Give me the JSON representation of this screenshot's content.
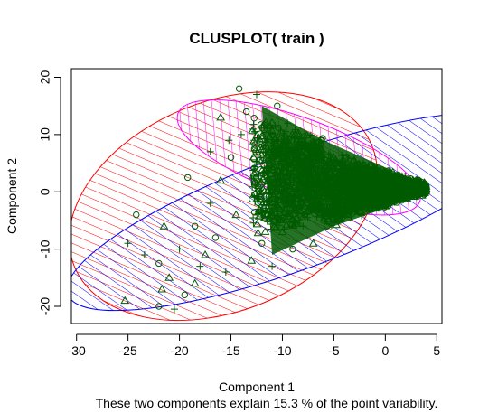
{
  "chart_data": {
    "type": "scatter",
    "title": "CLUSPLOT( train )",
    "xlabel": "Component 1",
    "ylabel": "Component 2",
    "subtitle": "These two components explain 15.3 % of the point variability.",
    "xlim": [
      -30.5,
      5.5
    ],
    "ylim": [
      -23,
      21.5
    ],
    "xticks": [
      -30,
      -25,
      -20,
      -15,
      -10,
      -5,
      0,
      5
    ],
    "yticks": [
      -20,
      -10,
      0,
      10,
      20
    ],
    "grid": false,
    "ellipses": [
      {
        "color": "#ff0000",
        "center": [
          -15.75,
          -2.5
        ],
        "semi_axes": [
          15.6,
          18.3
        ],
        "angle_deg": 22,
        "hatch": "diagonal"
      },
      {
        "color": "#0000ff",
        "center": [
          -8.75,
          -3.5
        ],
        "semi_axes": [
          23.5,
          10.0
        ],
        "angle_deg": 20,
        "hatch": "diagonal"
      },
      {
        "color": "#ff00ff",
        "center": [
          -8.4,
          6.0
        ],
        "semi_axes": [
          12.5,
          6.9
        ],
        "angle_deg": -20,
        "hatch": "diagonal"
      }
    ],
    "point_color": "#005a00",
    "point_symbols": [
      "plus",
      "circle",
      "triangle"
    ],
    "points": [
      [
        -25.0,
        -9.0
      ],
      [
        -24.2,
        -4.0
      ],
      [
        -25.3,
        -19.0
      ],
      [
        -23.4,
        -11.0
      ],
      [
        -22.0,
        -20.0
      ],
      [
        -21.7,
        -17.0
      ],
      [
        -20.5,
        -20.5
      ],
      [
        -22.0,
        -12.5
      ],
      [
        -21.0,
        -15.0
      ],
      [
        -20.0,
        -10.0
      ],
      [
        -19.5,
        -18.0
      ],
      [
        -18.5,
        -16.0
      ],
      [
        -18.0,
        -13.0
      ],
      [
        -18.5,
        -6.0
      ],
      [
        -17.5,
        -11.0
      ],
      [
        -17.0,
        -2.0
      ],
      [
        -16.5,
        -8.0
      ],
      [
        -16.0,
        2.0
      ],
      [
        -15.5,
        -14.0
      ],
      [
        -15.0,
        6.0
      ],
      [
        -14.5,
        -4.0
      ],
      [
        -14.0,
        10.0
      ],
      [
        -13.5,
        14.0
      ],
      [
        -13.0,
        -12.0
      ],
      [
        -12.5,
        17.0
      ],
      [
        -12.0,
        -9.0
      ],
      [
        -11.5,
        4.0
      ],
      [
        -11.0,
        -13.0
      ],
      [
        -10.5,
        15.0
      ],
      [
        -10.0,
        -7.0
      ],
      [
        -9.5,
        12.0
      ],
      [
        -9.0,
        -10.0
      ],
      [
        -8.5,
        10.0
      ],
      [
        -8.0,
        -6.0
      ],
      [
        -7.5,
        8.0
      ],
      [
        -7.0,
        -9.0
      ],
      [
        -6.5,
        5.0
      ],
      [
        -6.0,
        -5.0
      ],
      [
        -5.5,
        4.0
      ],
      [
        -5.0,
        -4.0
      ],
      [
        -4.5,
        3.0
      ],
      [
        -4.0,
        -3.0
      ],
      [
        -3.5,
        2.0
      ],
      [
        -3.0,
        -2.0
      ],
      [
        -2.5,
        1.5
      ],
      [
        -2.0,
        -1.5
      ],
      [
        -1.5,
        1.0
      ],
      [
        -1.0,
        -1.0
      ],
      [
        -0.5,
        0.5
      ],
      [
        0.0,
        0.0
      ],
      [
        1.0,
        0.5
      ],
      [
        2.0,
        0.0
      ],
      [
        3.0,
        0.5
      ],
      [
        3.8,
        0.0
      ],
      [
        -17.0,
        7.0
      ],
      [
        -14.2,
        18.0
      ],
      [
        -16.0,
        13.0
      ],
      [
        -15.2,
        9.0
      ],
      [
        -19.2,
        2.5
      ],
      [
        -21.5,
        -6.0
      ]
    ]
  }
}
